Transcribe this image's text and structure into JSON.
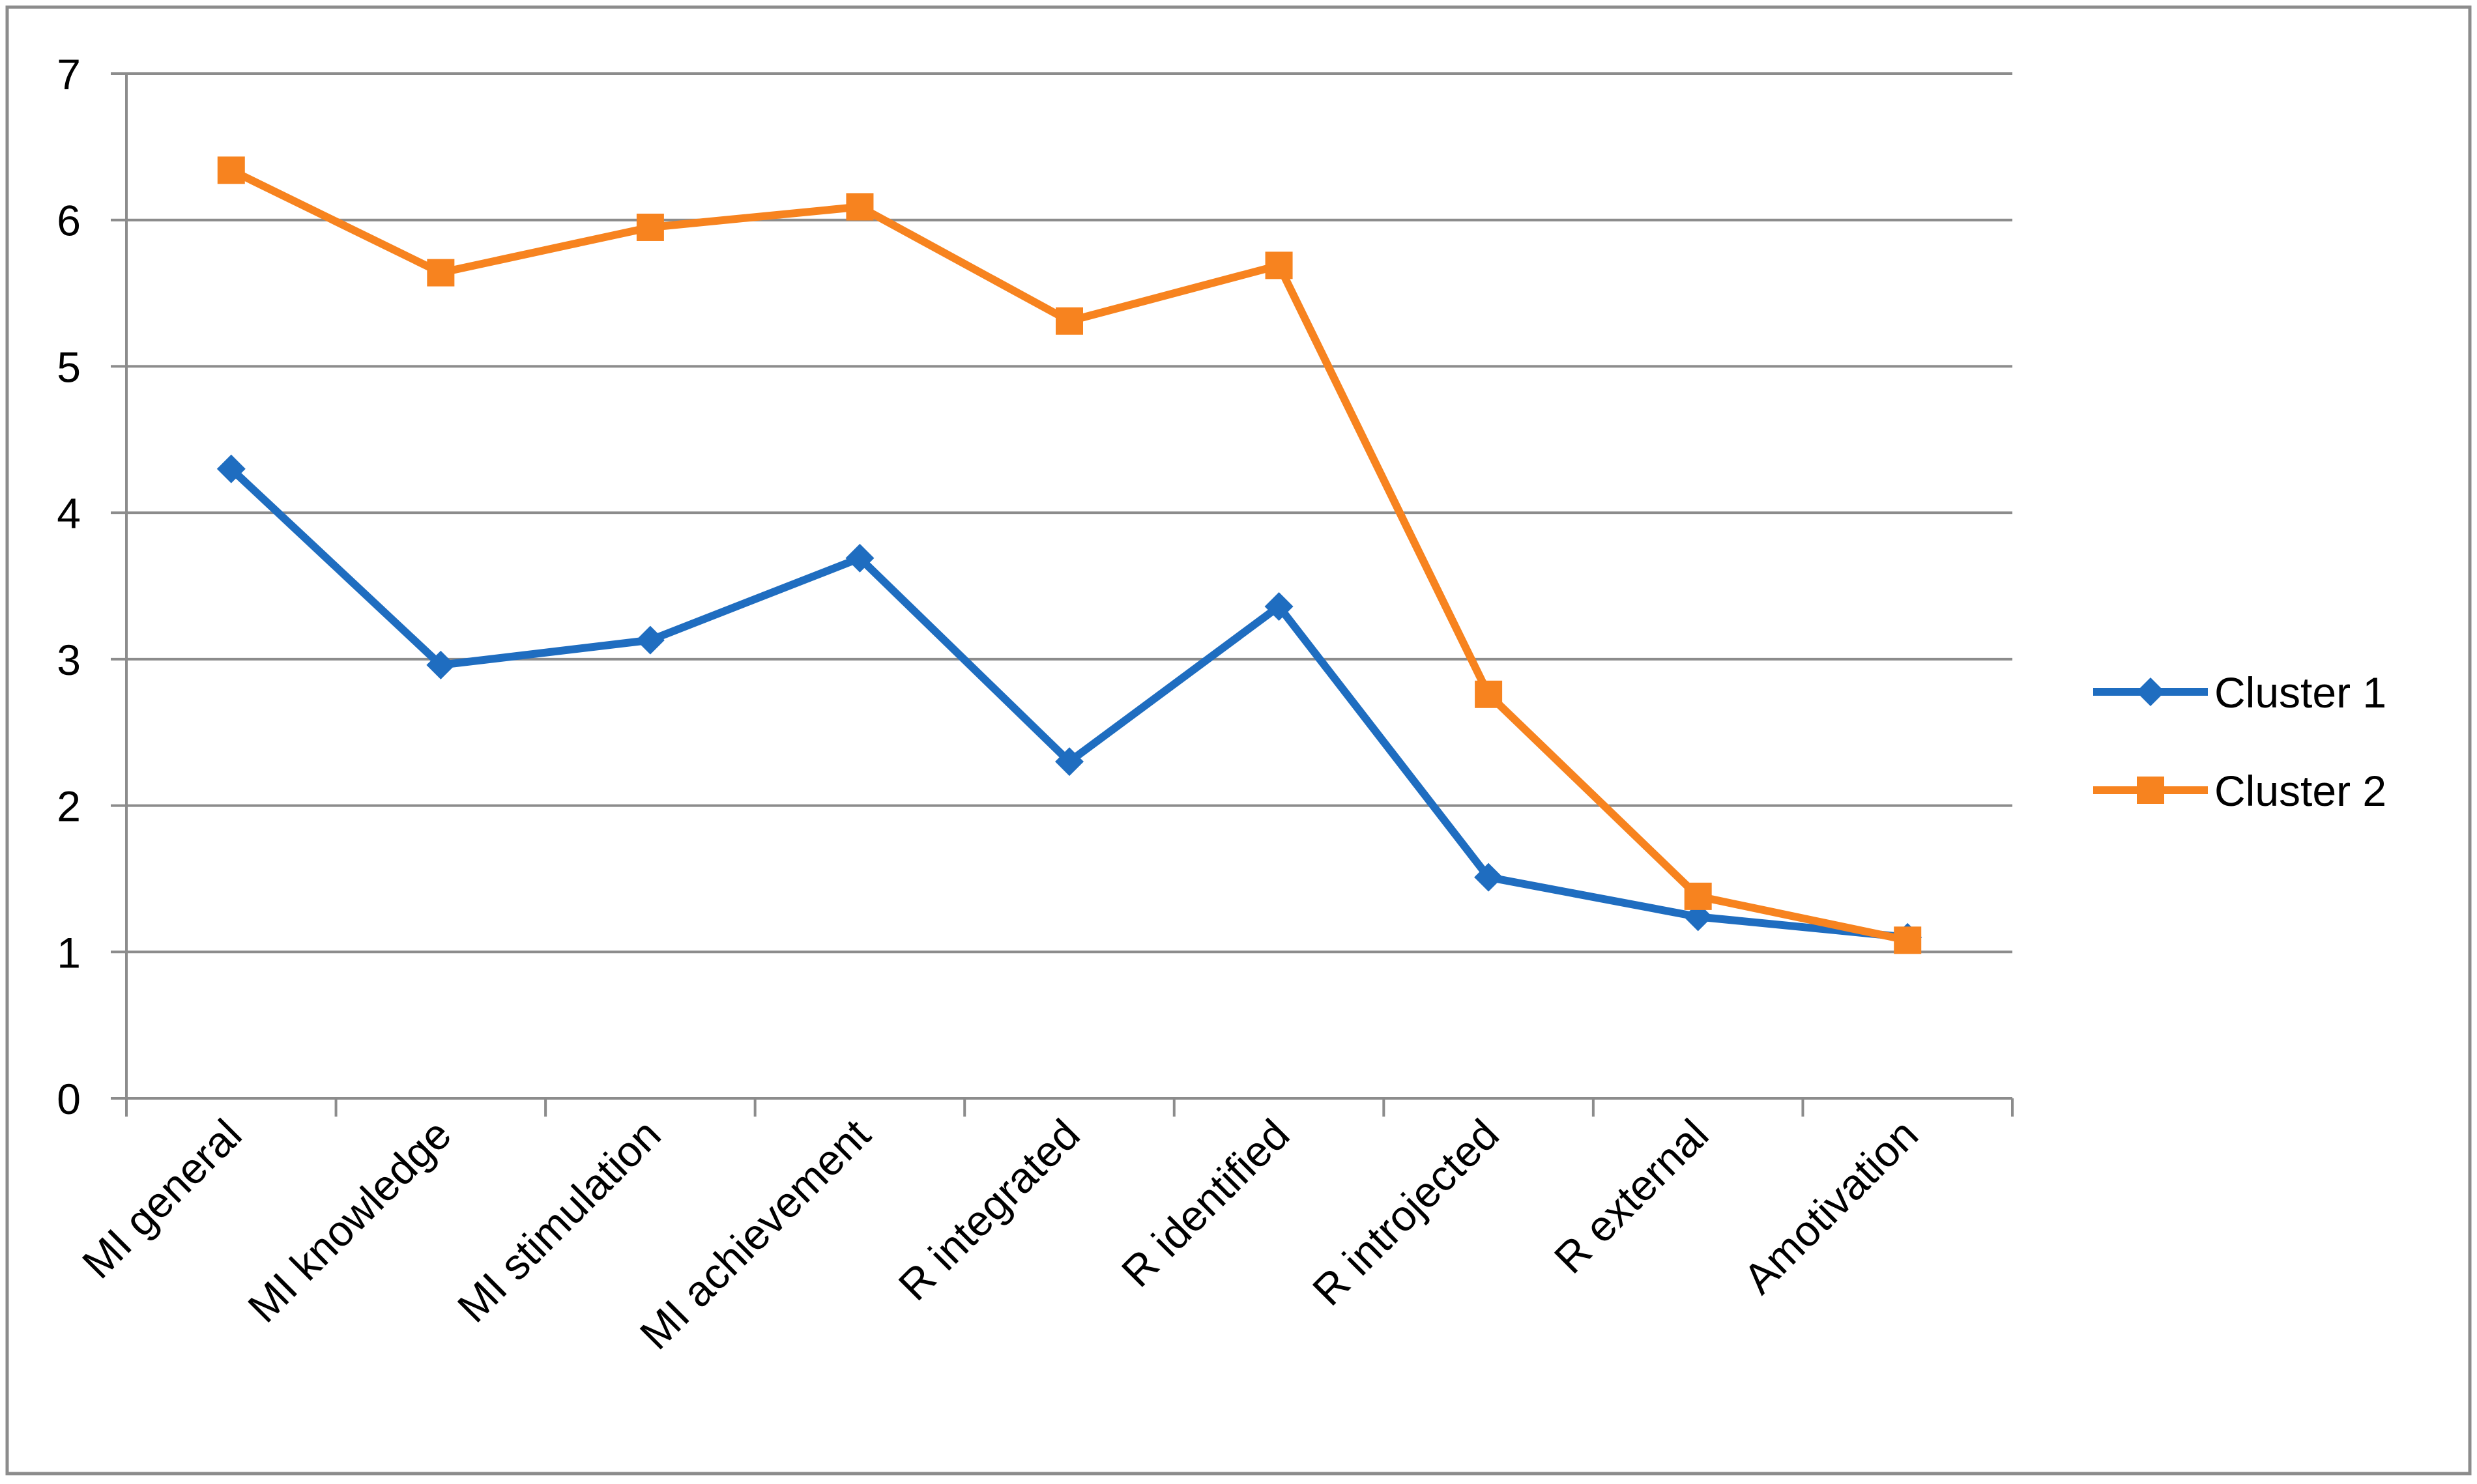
{
  "chart_data": {
    "type": "line",
    "title": "",
    "xlabel": "",
    "ylabel": "",
    "categories": [
      "MI general",
      "MI knowledge",
      "MI stimulation",
      "MI achievement",
      "R integrated",
      "R identified",
      "R introjected",
      "R external",
      "Amotivation"
    ],
    "ylim": [
      0,
      7
    ],
    "yticks": [
      "0",
      "1",
      "2",
      "3",
      "4",
      "5",
      "6",
      "7"
    ],
    "grid": true,
    "legend_position": "right",
    "series": [
      {
        "name": "Cluster 1",
        "color": "#1F6DC0",
        "marker": "diamond",
        "values": [
          4.3,
          2.96,
          3.13,
          3.69,
          2.3,
          3.36,
          1.51,
          1.24,
          1.1
        ]
      },
      {
        "name": "Cluster 2",
        "color": "#F7831F",
        "marker": "square",
        "values": [
          6.34,
          5.64,
          5.95,
          6.09,
          5.31,
          5.69,
          2.76,
          1.38,
          1.08
        ]
      }
    ]
  }
}
